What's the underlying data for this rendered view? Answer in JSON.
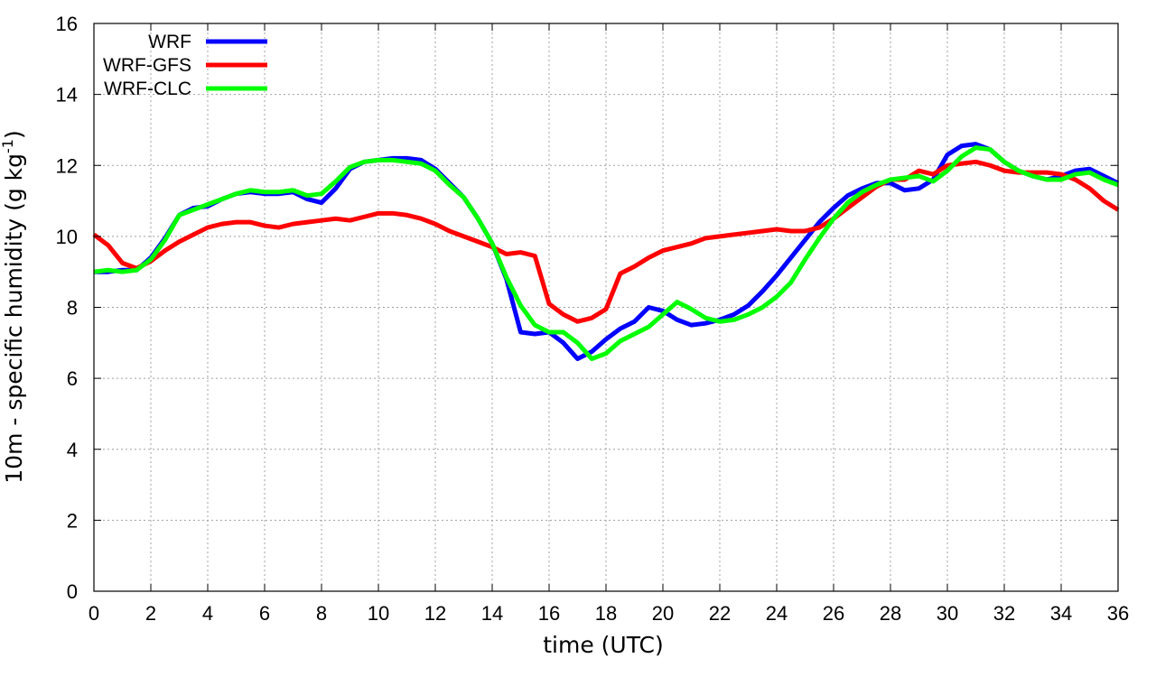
{
  "chart_data": {
    "type": "line",
    "xlabel": "time (UTC)",
    "ylabel": {
      "main": "10m - specific humidity (g kg",
      "sup": "-1",
      "end": ")"
    },
    "xlim": [
      0,
      36
    ],
    "ylim": [
      0,
      16
    ],
    "xticks": [
      "0",
      "2",
      "4",
      "6",
      "8",
      "10",
      "12",
      "14",
      "16",
      "18",
      "20",
      "22",
      "24",
      "26",
      "28",
      "30",
      "32",
      "34",
      "36"
    ],
    "yticks": [
      "0",
      "2",
      "4",
      "6",
      "8",
      "10",
      "12",
      "14",
      "16"
    ],
    "grid": true,
    "legend_position": "top-left",
    "x": [
      0,
      0.5,
      1,
      1.5,
      2,
      2.5,
      3,
      3.5,
      4,
      4.5,
      5,
      5.5,
      6,
      6.5,
      7,
      7.5,
      8,
      8.5,
      9,
      9.5,
      10,
      10.5,
      11,
      11.5,
      12,
      12.5,
      13,
      13.5,
      14,
      14.5,
      15,
      15.5,
      16,
      16.5,
      17,
      17.5,
      18,
      18.5,
      19,
      19.5,
      20,
      20.5,
      21,
      21.5,
      22,
      22.5,
      23,
      23.5,
      24,
      24.5,
      25,
      25.5,
      26,
      26.5,
      27,
      27.5,
      28,
      28.5,
      29,
      29.5,
      30,
      30.5,
      31,
      31.5,
      32,
      32.5,
      33,
      33.5,
      34,
      34.5,
      35,
      35.5,
      36
    ],
    "series": [
      {
        "name": "WRF",
        "color": "#0000ff",
        "values": [
          9.0,
          9.0,
          9.05,
          9.05,
          9.4,
          9.95,
          10.6,
          10.8,
          10.85,
          11.05,
          11.2,
          11.25,
          11.2,
          11.2,
          11.25,
          11.05,
          10.95,
          11.35,
          11.9,
          12.1,
          12.15,
          12.2,
          12.2,
          12.15,
          11.9,
          11.5,
          11.1,
          10.5,
          9.8,
          8.8,
          7.3,
          7.25,
          7.3,
          7.0,
          6.55,
          6.75,
          7.1,
          7.4,
          7.6,
          8.0,
          7.9,
          7.65,
          7.5,
          7.55,
          7.65,
          7.8,
          8.05,
          8.45,
          8.9,
          9.4,
          9.9,
          10.4,
          10.8,
          11.15,
          11.35,
          11.5,
          11.5,
          11.3,
          11.35,
          11.6,
          12.3,
          12.55,
          12.6,
          12.45,
          12.1,
          11.85,
          11.7,
          11.6,
          11.7,
          11.85,
          11.9,
          11.7,
          11.5
        ]
      },
      {
        "name": "WRF-GFS",
        "color": "#ff0000",
        "values": [
          10.05,
          9.75,
          9.25,
          9.1,
          9.3,
          9.6,
          9.85,
          10.05,
          10.25,
          10.35,
          10.4,
          10.4,
          10.3,
          10.25,
          10.35,
          10.4,
          10.45,
          10.5,
          10.45,
          10.55,
          10.65,
          10.65,
          10.6,
          10.5,
          10.35,
          10.15,
          10.0,
          9.85,
          9.7,
          9.5,
          9.55,
          9.45,
          8.1,
          7.8,
          7.6,
          7.7,
          7.95,
          8.95,
          9.15,
          9.4,
          9.6,
          9.7,
          9.8,
          9.95,
          10.0,
          10.05,
          10.1,
          10.15,
          10.2,
          10.15,
          10.15,
          10.25,
          10.5,
          10.8,
          11.1,
          11.4,
          11.6,
          11.6,
          11.85,
          11.75,
          12.0,
          12.05,
          12.1,
          12.0,
          11.85,
          11.8,
          11.8,
          11.8,
          11.75,
          11.6,
          11.35,
          11.0,
          10.75
        ]
      },
      {
        "name": "WRF-CLC",
        "color": "#00ff00",
        "values": [
          9.0,
          9.05,
          9.0,
          9.05,
          9.35,
          9.9,
          10.6,
          10.75,
          10.9,
          11.05,
          11.2,
          11.3,
          11.25,
          11.25,
          11.3,
          11.15,
          11.2,
          11.55,
          11.95,
          12.1,
          12.15,
          12.15,
          12.1,
          12.05,
          11.85,
          11.45,
          11.1,
          10.5,
          9.8,
          8.85,
          8.05,
          7.5,
          7.3,
          7.3,
          7.0,
          6.55,
          6.7,
          7.05,
          7.25,
          7.45,
          7.8,
          8.15,
          7.95,
          7.7,
          7.6,
          7.65,
          7.8,
          8.0,
          8.3,
          8.7,
          9.35,
          9.95,
          10.5,
          10.95,
          11.25,
          11.45,
          11.6,
          11.65,
          11.7,
          11.55,
          11.85,
          12.25,
          12.5,
          12.45,
          12.1,
          11.85,
          11.7,
          11.6,
          11.6,
          11.75,
          11.8,
          11.6,
          11.45
        ]
      }
    ]
  }
}
